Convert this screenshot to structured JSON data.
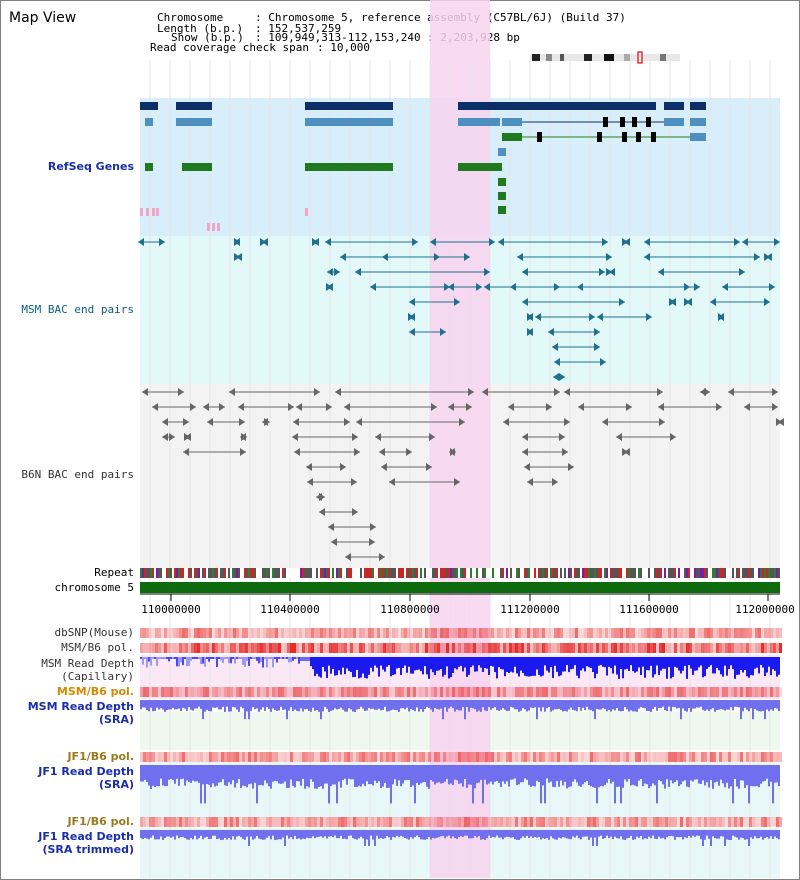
{
  "panel_title": "Map View",
  "info": {
    "chromosome_label": "Chromosome",
    "chromosome_value": ": Chromosome 5, reference assembly (C57BL/6J) (Build 37)",
    "length_label": "Length (b.p.)",
    "length_value": ": 152,537,259",
    "show_label": "Show (b.p.)",
    "show_value": ": 109,949,313-112,153,240 : 2,203,928 bp",
    "coverage_label": "Read coverage check span",
    "coverage_value": ": 10,000"
  },
  "tracks": {
    "refseq": "RefSeq Genes",
    "msm_bac": "MSM BAC end pairs",
    "b6n_bac": "B6N BAC end pairs",
    "repeat": "Repeat",
    "chromosome": "chromosome 5",
    "dbsnp": "dbSNP(Mouse)",
    "msm_b6_pol_1": "MSM/B6 pol.",
    "msm_read_depth_cap_1": "MSM Read Depth",
    "msm_read_depth_cap_2": "(Capillary)",
    "msm_b6_pol_2": "MSM/B6 pol.",
    "msm_read_depth_sra_1": "MSM Read Depth",
    "msm_read_depth_sra_2": "(SRA)",
    "jf1_b6_pol_1": "JF1/B6 pol.",
    "jf1_read_depth_sra_1": "JF1 Read Depth",
    "jf1_read_depth_sra_2": "(SRA)",
    "jf1_b6_pol_2": "JF1/B6 pol.",
    "jf1_read_depth_trim_1": "JF1 Read Depth",
    "jf1_read_depth_trim_2": "(SRA trimmed)"
  },
  "axis": {
    "ticks": [
      "110000000",
      "110400000",
      "110800000",
      "111200000",
      "111600000",
      "112000000"
    ]
  },
  "colors": {
    "refseq_bg": "#d8eefa",
    "msm_bg": "#e3f8f8",
    "b6n_bg": "#f3f3f3",
    "highlight": "#f7d4ee",
    "gene_navy": "#0b2f66",
    "gene_blue": "#4d8fbf",
    "gene_green": "#1f7a1f",
    "chromosome_bar": "#0d6b0d",
    "depth_blue": "#1a1aee",
    "depth_light": "#7070ee",
    "pol_red": "#ee3a3a"
  }
}
